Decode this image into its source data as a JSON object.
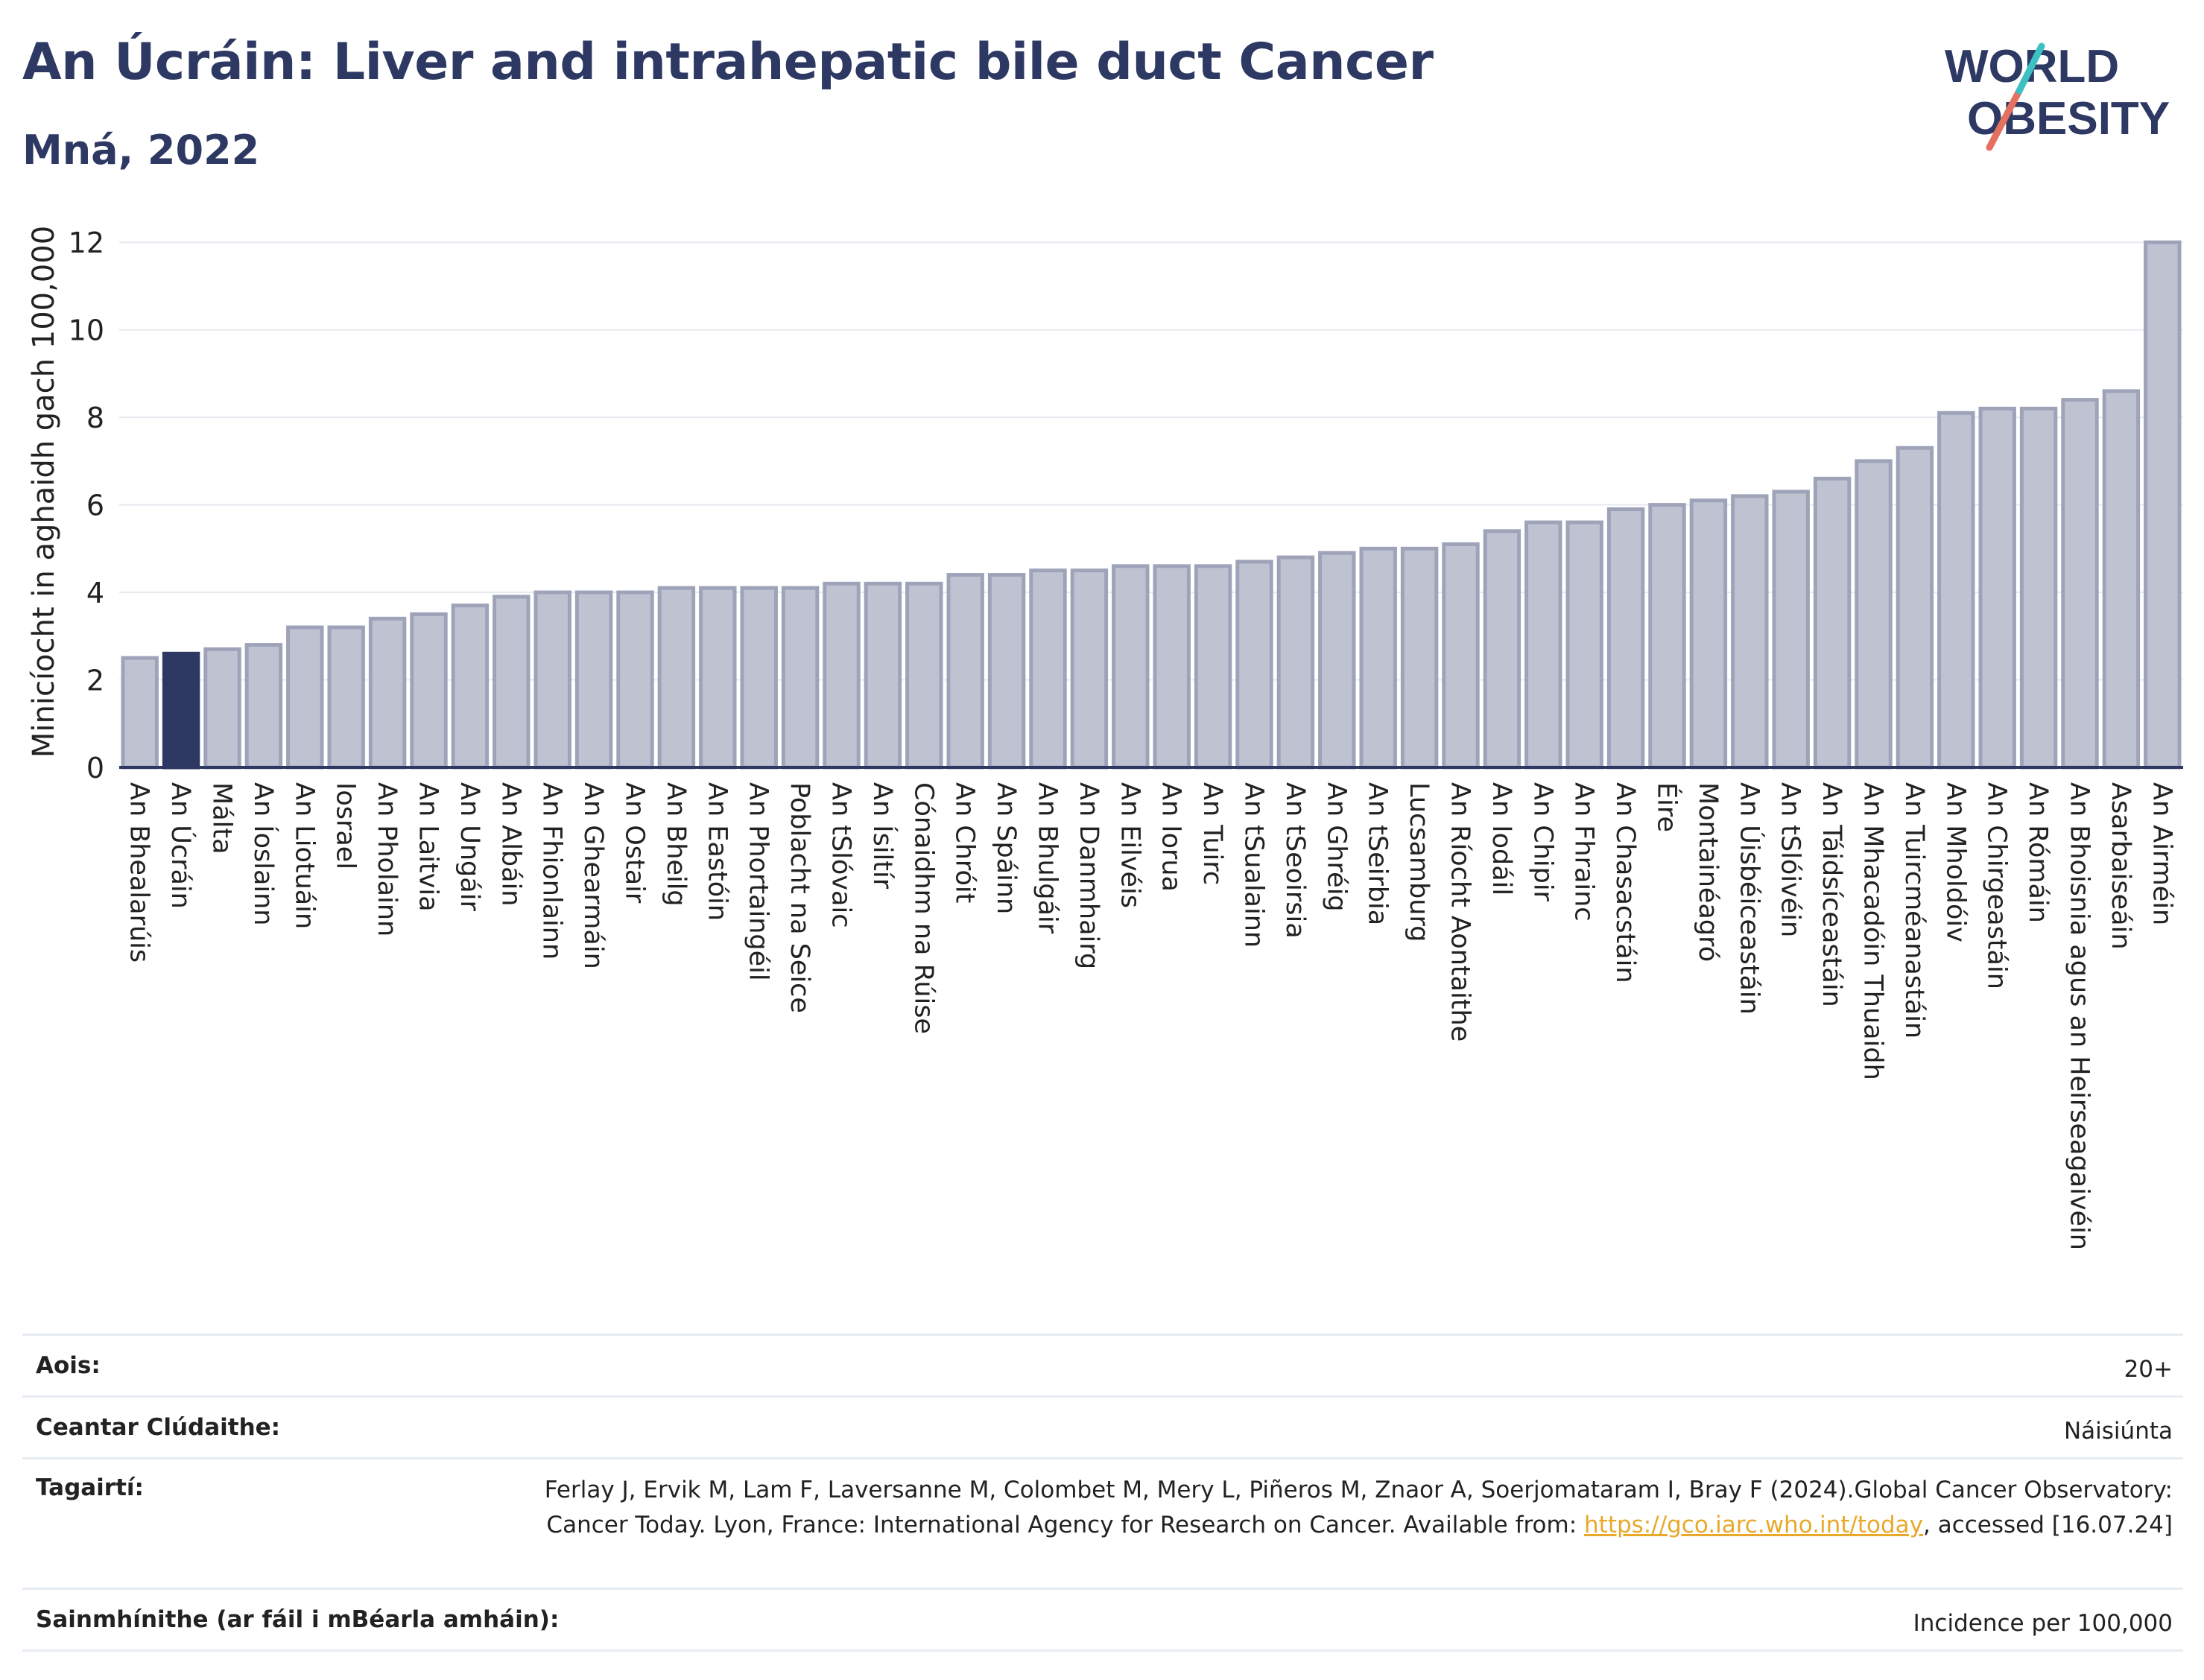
{
  "header": {
    "title": "An Úcráin: Liver and intrahepatic bile duct Cancer",
    "subtitle": "Mná, 2022"
  },
  "logo": {
    "line1": "WORLD",
    "line2": "OBESITY"
  },
  "colors": {
    "highlight": "#2d3863",
    "bar": "#bfc3d1",
    "bar_edge": "#9ea3ba",
    "grid": "#e6e9ef",
    "axis": "#2d3863"
  },
  "chart_data": {
    "type": "bar",
    "ylabel": "Minicíocht in aghaidh gach 100,000",
    "ylim": [
      0,
      12.6
    ],
    "yticks": [
      0,
      2,
      4,
      6,
      8,
      10,
      12
    ],
    "highlight": "An Úcráin",
    "categories": [
      "An Bhealarúis",
      "An Úcráin",
      "Málta",
      "An Íoslainn",
      "An Liotuáin",
      "Iosrael",
      "An Pholainn",
      "An Laitvia",
      "An Ungáir",
      "An Albáin",
      "An Fhionlainn",
      "An Ghearmáin",
      "An Ostair",
      "An Bheilg",
      "An Eastóin",
      "An Phortaingéil",
      "Poblacht na Seice",
      "An tSlóvaic",
      "An Ísiltír",
      "Cónaidhm na Rúise",
      "An Chróit",
      "An Spáinn",
      "An Bhulgáir",
      "An Danmhairg",
      "An Eilvéis",
      "An Iorua",
      "An Tuirc",
      "An tSualainn",
      "An tSeoirsia",
      "An Ghréig",
      "An tSeirbia",
      "Lucsamburg",
      "An Ríocht Aontaithe",
      "An Iodáil",
      "An Chipir",
      "An Fhrainc",
      "An Chasacstáin",
      "Éire",
      "Montainéagró",
      "An Úisbéiceastáin",
      "An tSlóivéin",
      "An Táidsíceastáin",
      "An Mhacadóin Thuaidh",
      "An Tuircméanastáin",
      "An Mholdóiv",
      "An Chirgeastáin",
      "An Rómáin",
      "An Bhoisnia agus an Heirseagaivéin",
      "Asarbaiseáin",
      "An Airméin"
    ],
    "values": [
      2.5,
      2.6,
      2.7,
      2.8,
      3.2,
      3.2,
      3.4,
      3.5,
      3.7,
      3.9,
      4.0,
      4.0,
      4.0,
      4.1,
      4.1,
      4.1,
      4.1,
      4.2,
      4.2,
      4.2,
      4.4,
      4.4,
      4.5,
      4.5,
      4.6,
      4.6,
      4.6,
      4.7,
      4.8,
      4.9,
      5.0,
      5.0,
      5.1,
      5.4,
      5.6,
      5.6,
      5.9,
      6.0,
      6.1,
      6.2,
      6.3,
      6.6,
      7.0,
      7.3,
      8.1,
      8.2,
      8.2,
      8.4,
      8.6,
      12.0
    ]
  },
  "details": {
    "age_label": "Aois:",
    "age_value": "20+",
    "area_label": "Ceantar Clúdaithe:",
    "area_value": "Náisiúnta",
    "ref_label": "Tagairtí:",
    "ref_text_1": "Ferlay J, Ervik M, Lam F, Laversanne M, Colombet M, Mery L, Piñeros M, Znaor A, Soerjomataram I, Bray F (2024).Global Cancer Observatory: Cancer Today. Lyon, France: International Agency for Research on Cancer. Available from: ",
    "ref_link": "https://gco.iarc.who.int/today",
    "ref_text_2": ", accessed [16.07.24]",
    "def_label": "Sainmhínithe (ar fáil i mBéarla amháin):",
    "def_value": "Incidence per 100,000"
  }
}
